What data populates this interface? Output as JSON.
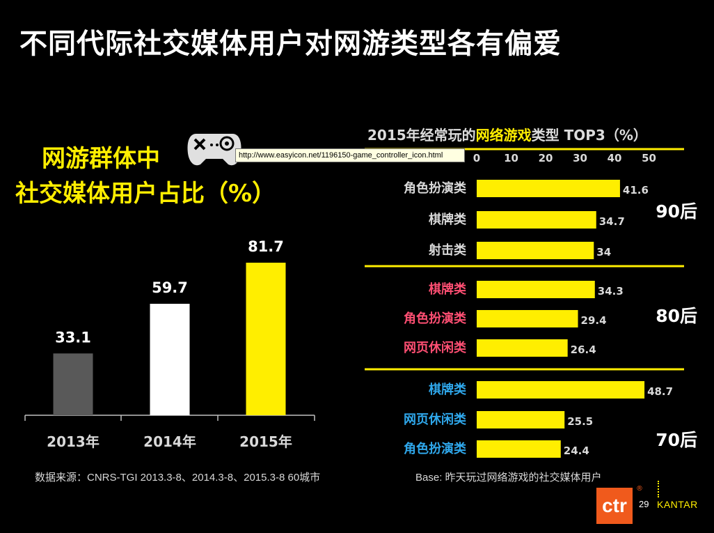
{
  "page_title": "不同代际社交媒体用户对网游类型各有偏爱",
  "tooltip_text": "http://www.easyicon.net/1196150-game_controller_icon.html",
  "source_note": "数据来源：CNRS-TGI 2013.3-8、2014.3-8、2015.3-8  60城市",
  "base_note": "Base: 昨天玩过网络游戏的社交媒体用户",
  "logo_text": "ctr",
  "logo_mark": "®",
  "page_number": "29",
  "brand": "KANTAR",
  "icon": "game-controller-icon",
  "chart_data": [
    {
      "type": "bar",
      "title_lines": [
        "网游群体中",
        "社交媒体用户占比（%）"
      ],
      "categories": [
        "2013年",
        "2014年",
        "2015年"
      ],
      "values": [
        33.1,
        59.7,
        81.7
      ],
      "colors": [
        "#595959",
        "#ffffff",
        "#ffee00"
      ],
      "ylim": [
        0,
        100
      ],
      "grid": false,
      "legend": "none"
    },
    {
      "type": "bar",
      "orientation": "horizontal",
      "title_prefix": "2015年经常玩的",
      "title_highlight": "网络游戏",
      "title_suffix": "类型  TOP3（%）",
      "x_ticks": [
        0,
        10,
        20,
        30,
        40,
        50
      ],
      "xlim": [
        0,
        50
      ],
      "bar_color": "#ffee00",
      "grid": false,
      "legend": "none",
      "groups": [
        {
          "name": "90后",
          "label_color": "#d9d9d9",
          "items": [
            {
              "label": "角色扮演类",
              "value": 41.6
            },
            {
              "label": "棋牌类",
              "value": 34.7
            },
            {
              "label": "射击类",
              "value": 34
            }
          ]
        },
        {
          "name": "80后",
          "label_color": "#ff4f73",
          "items": [
            {
              "label": "棋牌类",
              "value": 34.3
            },
            {
              "label": "角色扮演类",
              "value": 29.4
            },
            {
              "label": "网页休闲类",
              "value": 26.4
            }
          ]
        },
        {
          "name": "70后",
          "label_color": "#2fa8ec",
          "items": [
            {
              "label": "棋牌类",
              "value": 48.7
            },
            {
              "label": "网页休闲类",
              "value": 25.5
            },
            {
              "label": "角色扮演类",
              "value": 24.4
            }
          ]
        }
      ]
    }
  ]
}
